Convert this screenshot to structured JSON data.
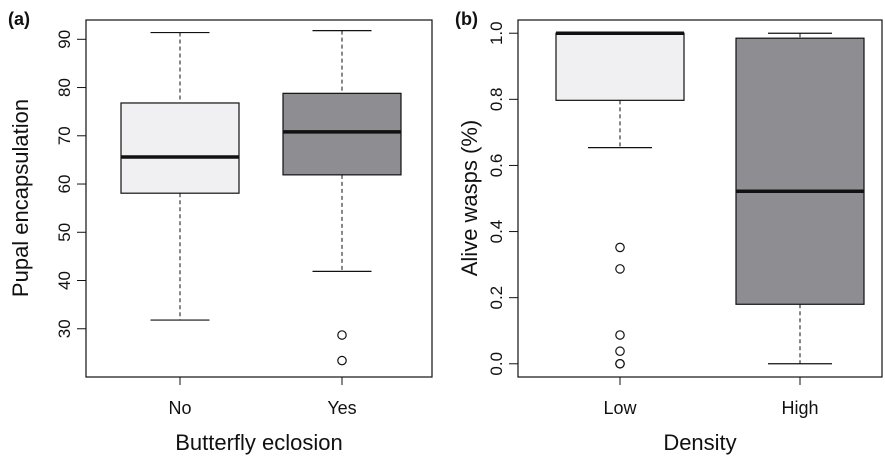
{
  "chart_data": [
    {
      "type": "box",
      "panel_label": "(a)",
      "xlabel": "Butterfly eclosion",
      "ylabel": "Pupal encapsulation",
      "ylim": [
        20,
        94
      ],
      "yticks": [
        30,
        40,
        50,
        60,
        70,
        80,
        90
      ],
      "ytick_labels": [
        "30",
        "40",
        "50",
        "60",
        "70",
        "80",
        "90"
      ],
      "grid": false,
      "categories": [
        "No",
        "Yes"
      ],
      "boxes": [
        {
          "category": "No",
          "whisker_low": 31.8,
          "q1": 58.1,
          "median": 65.6,
          "q3": 76.8,
          "whisker_high": 91.4,
          "outliers": [],
          "fill": "#f0f0f2"
        },
        {
          "category": "Yes",
          "whisker_low": 41.9,
          "q1": 61.9,
          "median": 70.8,
          "q3": 78.8,
          "whisker_high": 91.8,
          "outliers": [
            28.7,
            23.4
          ],
          "fill": "#8e8e92"
        }
      ]
    },
    {
      "type": "box",
      "panel_label": "(b)",
      "xlabel": "Density",
      "ylabel": "Alive wasps (%)",
      "ylim": [
        -0.04,
        1.04
      ],
      "yticks": [
        0.0,
        0.2,
        0.4,
        0.6,
        0.8,
        1.0
      ],
      "ytick_labels": [
        "0.0",
        "0.2",
        "0.4",
        "0.6",
        "0.8",
        "1.0"
      ],
      "grid": false,
      "categories": [
        "Low",
        "High"
      ],
      "boxes": [
        {
          "category": "Low",
          "whisker_low": 0.654,
          "q1": 0.797,
          "median": 1.0,
          "q3": 1.0,
          "whisker_high": 1.0,
          "outliers": [
            0.352,
            0.287,
            0.087,
            0.038,
            0.0,
            0.0
          ],
          "fill": "#f0f0f2"
        },
        {
          "category": "High",
          "whisker_low": 0.0,
          "q1": 0.18,
          "median": 0.522,
          "q3": 0.985,
          "whisker_high": 1.0,
          "outliers": [],
          "fill": "#8e8e92"
        }
      ]
    }
  ]
}
